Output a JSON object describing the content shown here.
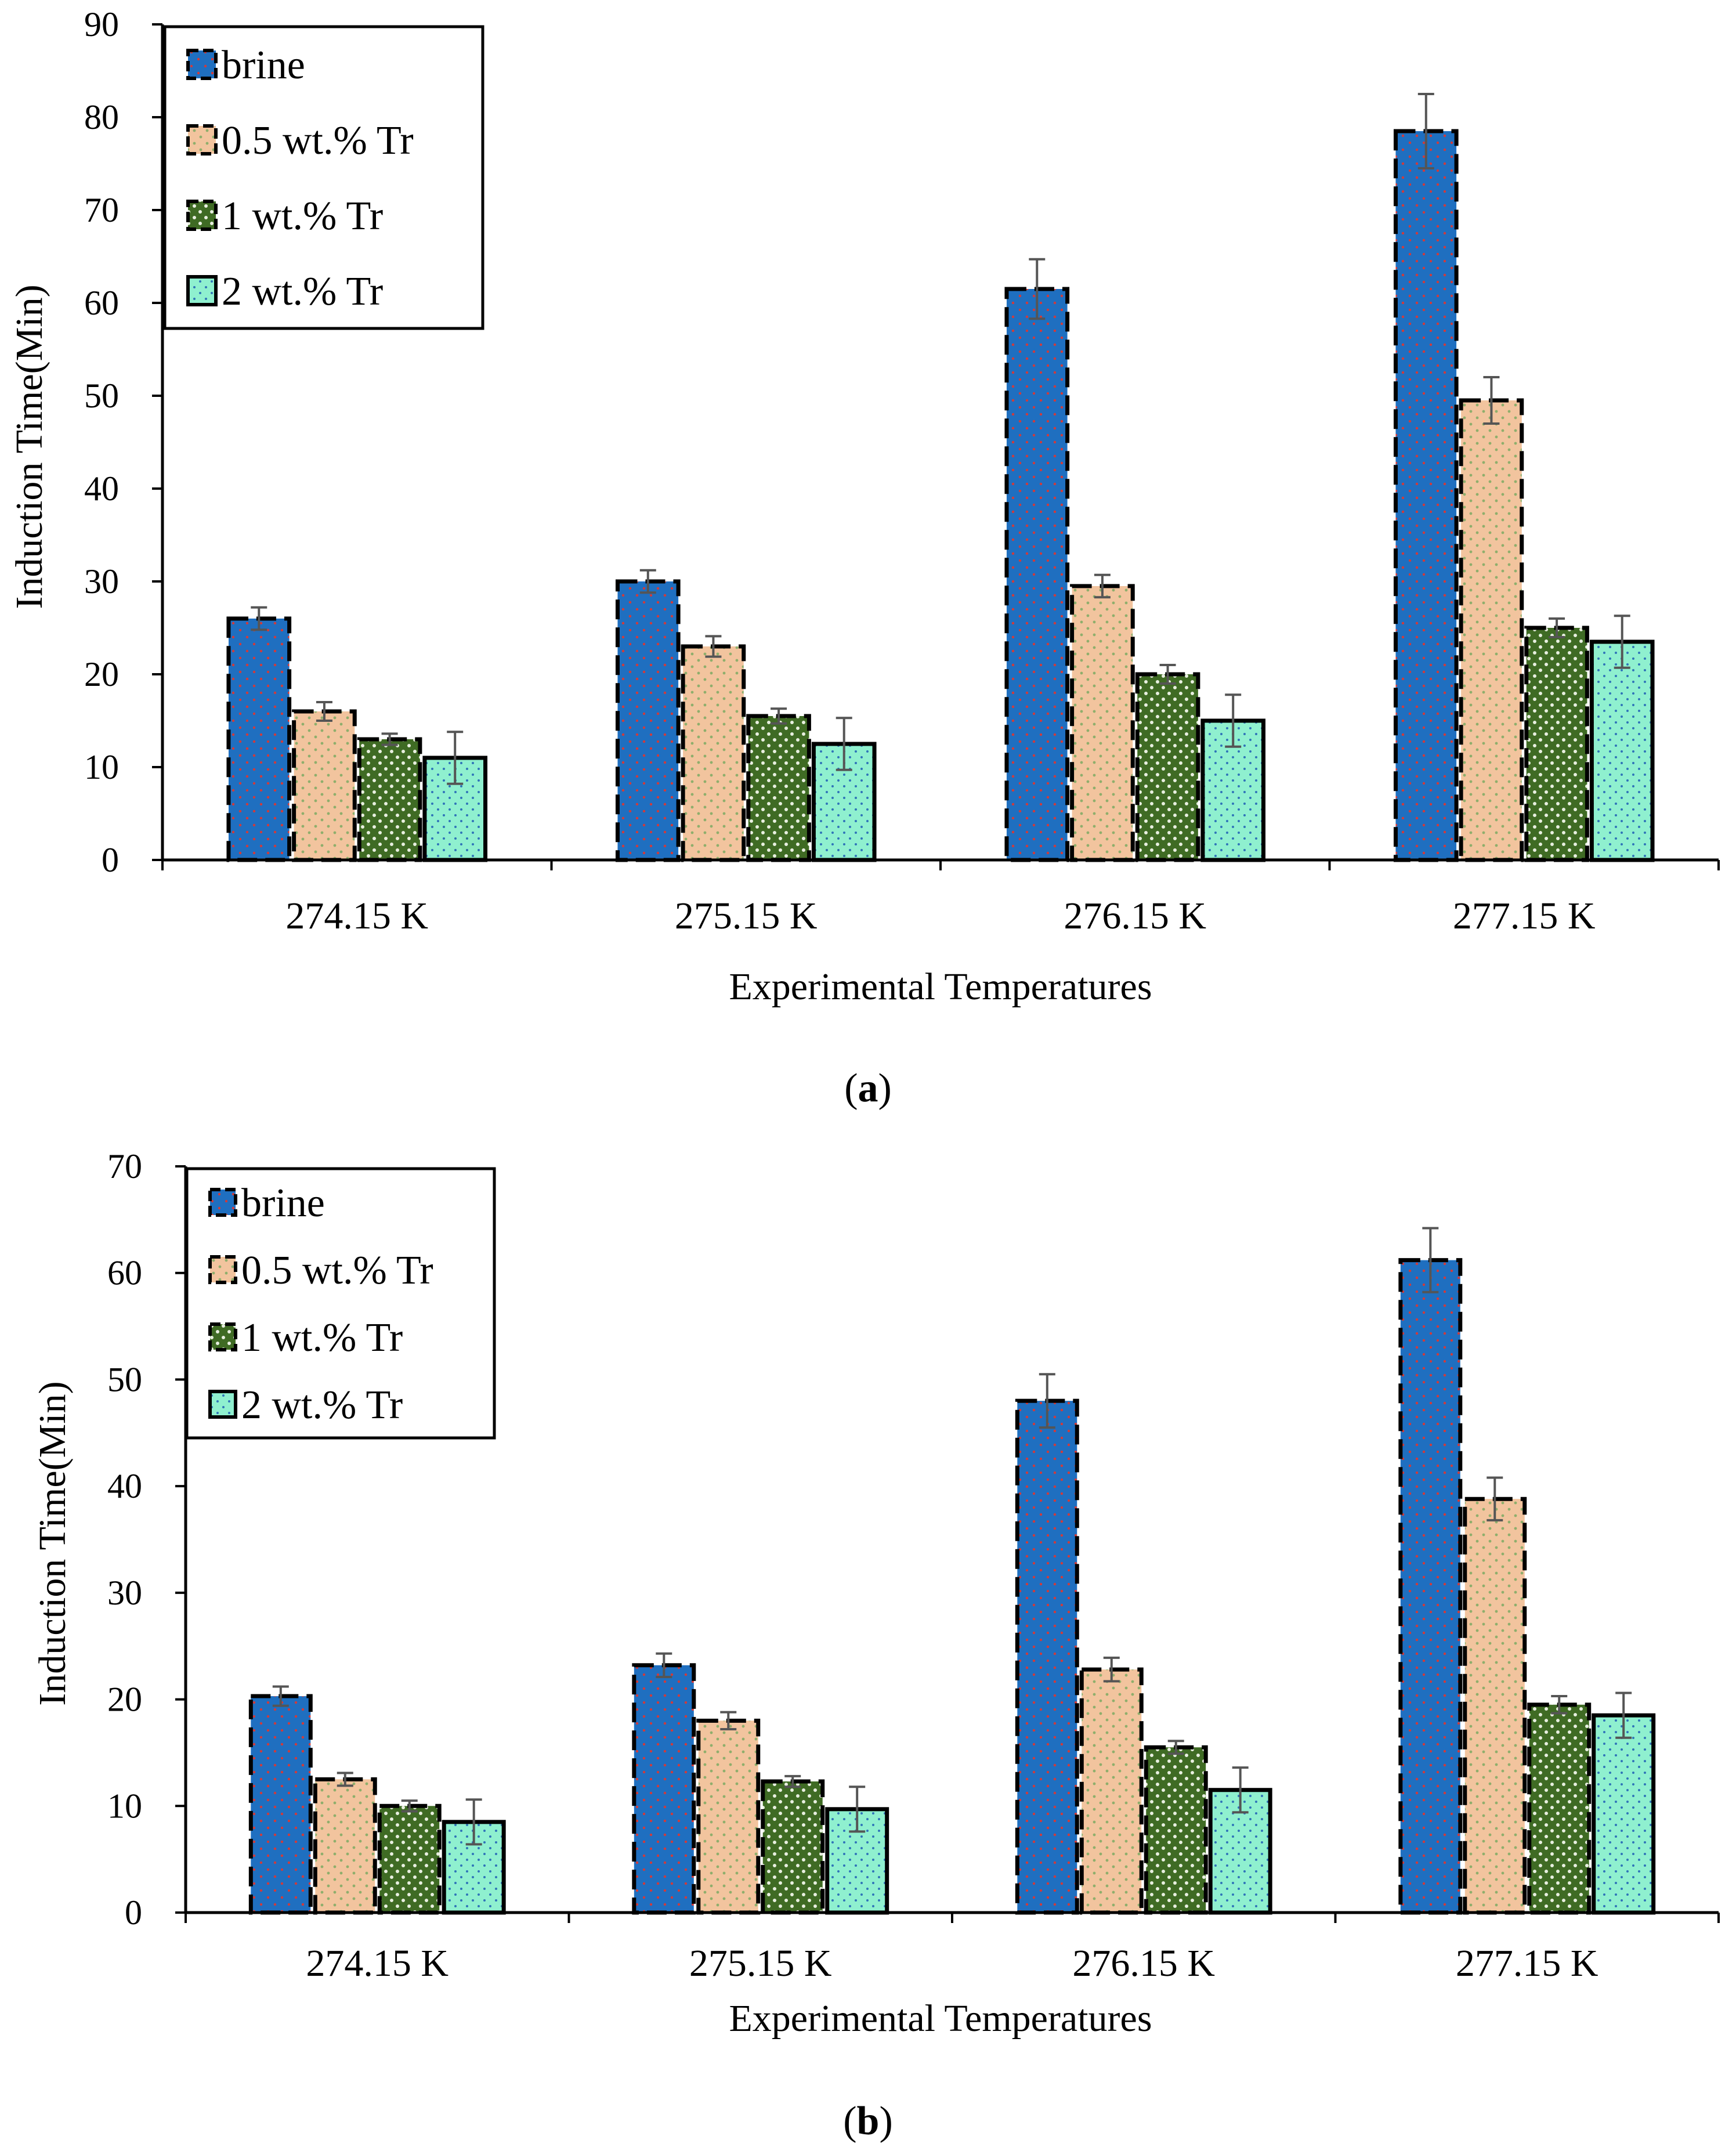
{
  "colors": {
    "brine": "#1f6fc0",
    "tr05": "#f2c49e",
    "tr1": "#3f6b24",
    "tr2": "#8ff0cf",
    "error_bar": "#555555",
    "bar_border": "#000000"
  },
  "chart_data": [
    {
      "type": "bar",
      "panel": "a",
      "caption_letter": "a",
      "categories": [
        "274.15 K",
        "275.15 K",
        "276.15 K",
        "277.15 K"
      ],
      "series": [
        {
          "key": "brine",
          "name": "brine",
          "values": [
            26,
            30,
            61.5,
            78.5
          ],
          "errors": [
            1.2,
            1.2,
            3.2,
            4
          ]
        },
        {
          "key": "tr05",
          "name": "0.5 wt.% Tr",
          "values": [
            16,
            23,
            29.5,
            49.5
          ],
          "errors": [
            1,
            1.1,
            1.2,
            2.5
          ]
        },
        {
          "key": "tr1",
          "name": "1 wt.% Tr",
          "values": [
            13,
            15.5,
            20,
            25
          ],
          "errors": [
            0.6,
            0.8,
            1,
            1
          ]
        },
        {
          "key": "tr2",
          "name": "2 wt.% Tr",
          "values": [
            11,
            12.5,
            15,
            23.5
          ],
          "errors": [
            2.8,
            2.8,
            2.8,
            2.8
          ]
        }
      ],
      "ylim": [
        0,
        90
      ],
      "yticks": [
        0,
        10,
        20,
        30,
        40,
        50,
        60,
        70,
        80,
        90
      ],
      "xlabel": "Experimental Temperatures",
      "ylabel": "Induction Time(Min)",
      "legend_position": "top-left",
      "grid": false
    },
    {
      "type": "bar",
      "panel": "b",
      "caption_letter": "b",
      "categories": [
        "274.15 K",
        "275.15 K",
        "276.15 K",
        "277.15 K"
      ],
      "series": [
        {
          "key": "brine",
          "name": "brine",
          "values": [
            20.3,
            23.2,
            48,
            61.2
          ],
          "errors": [
            0.9,
            1.1,
            2.5,
            3
          ]
        },
        {
          "key": "tr05",
          "name": "0.5 wt.% Tr",
          "values": [
            12.5,
            18,
            22.8,
            38.8
          ],
          "errors": [
            0.6,
            0.8,
            1.1,
            2
          ]
        },
        {
          "key": "tr1",
          "name": "1 wt.% Tr",
          "values": [
            10,
            12.3,
            15.5,
            19.5
          ],
          "errors": [
            0.5,
            0.5,
            0.6,
            0.8
          ]
        },
        {
          "key": "tr2",
          "name": "2 wt.% Tr",
          "values": [
            8.5,
            9.7,
            11.5,
            18.5
          ],
          "errors": [
            2.1,
            2.1,
            2.1,
            2.1
          ]
        }
      ],
      "ylim": [
        0,
        70
      ],
      "yticks": [
        0,
        10,
        20,
        30,
        40,
        50,
        60,
        70
      ],
      "xlabel": "Experimental Temperatures",
      "ylabel": "Induction Time(Min)",
      "legend_position": "top-left",
      "grid": false
    }
  ]
}
